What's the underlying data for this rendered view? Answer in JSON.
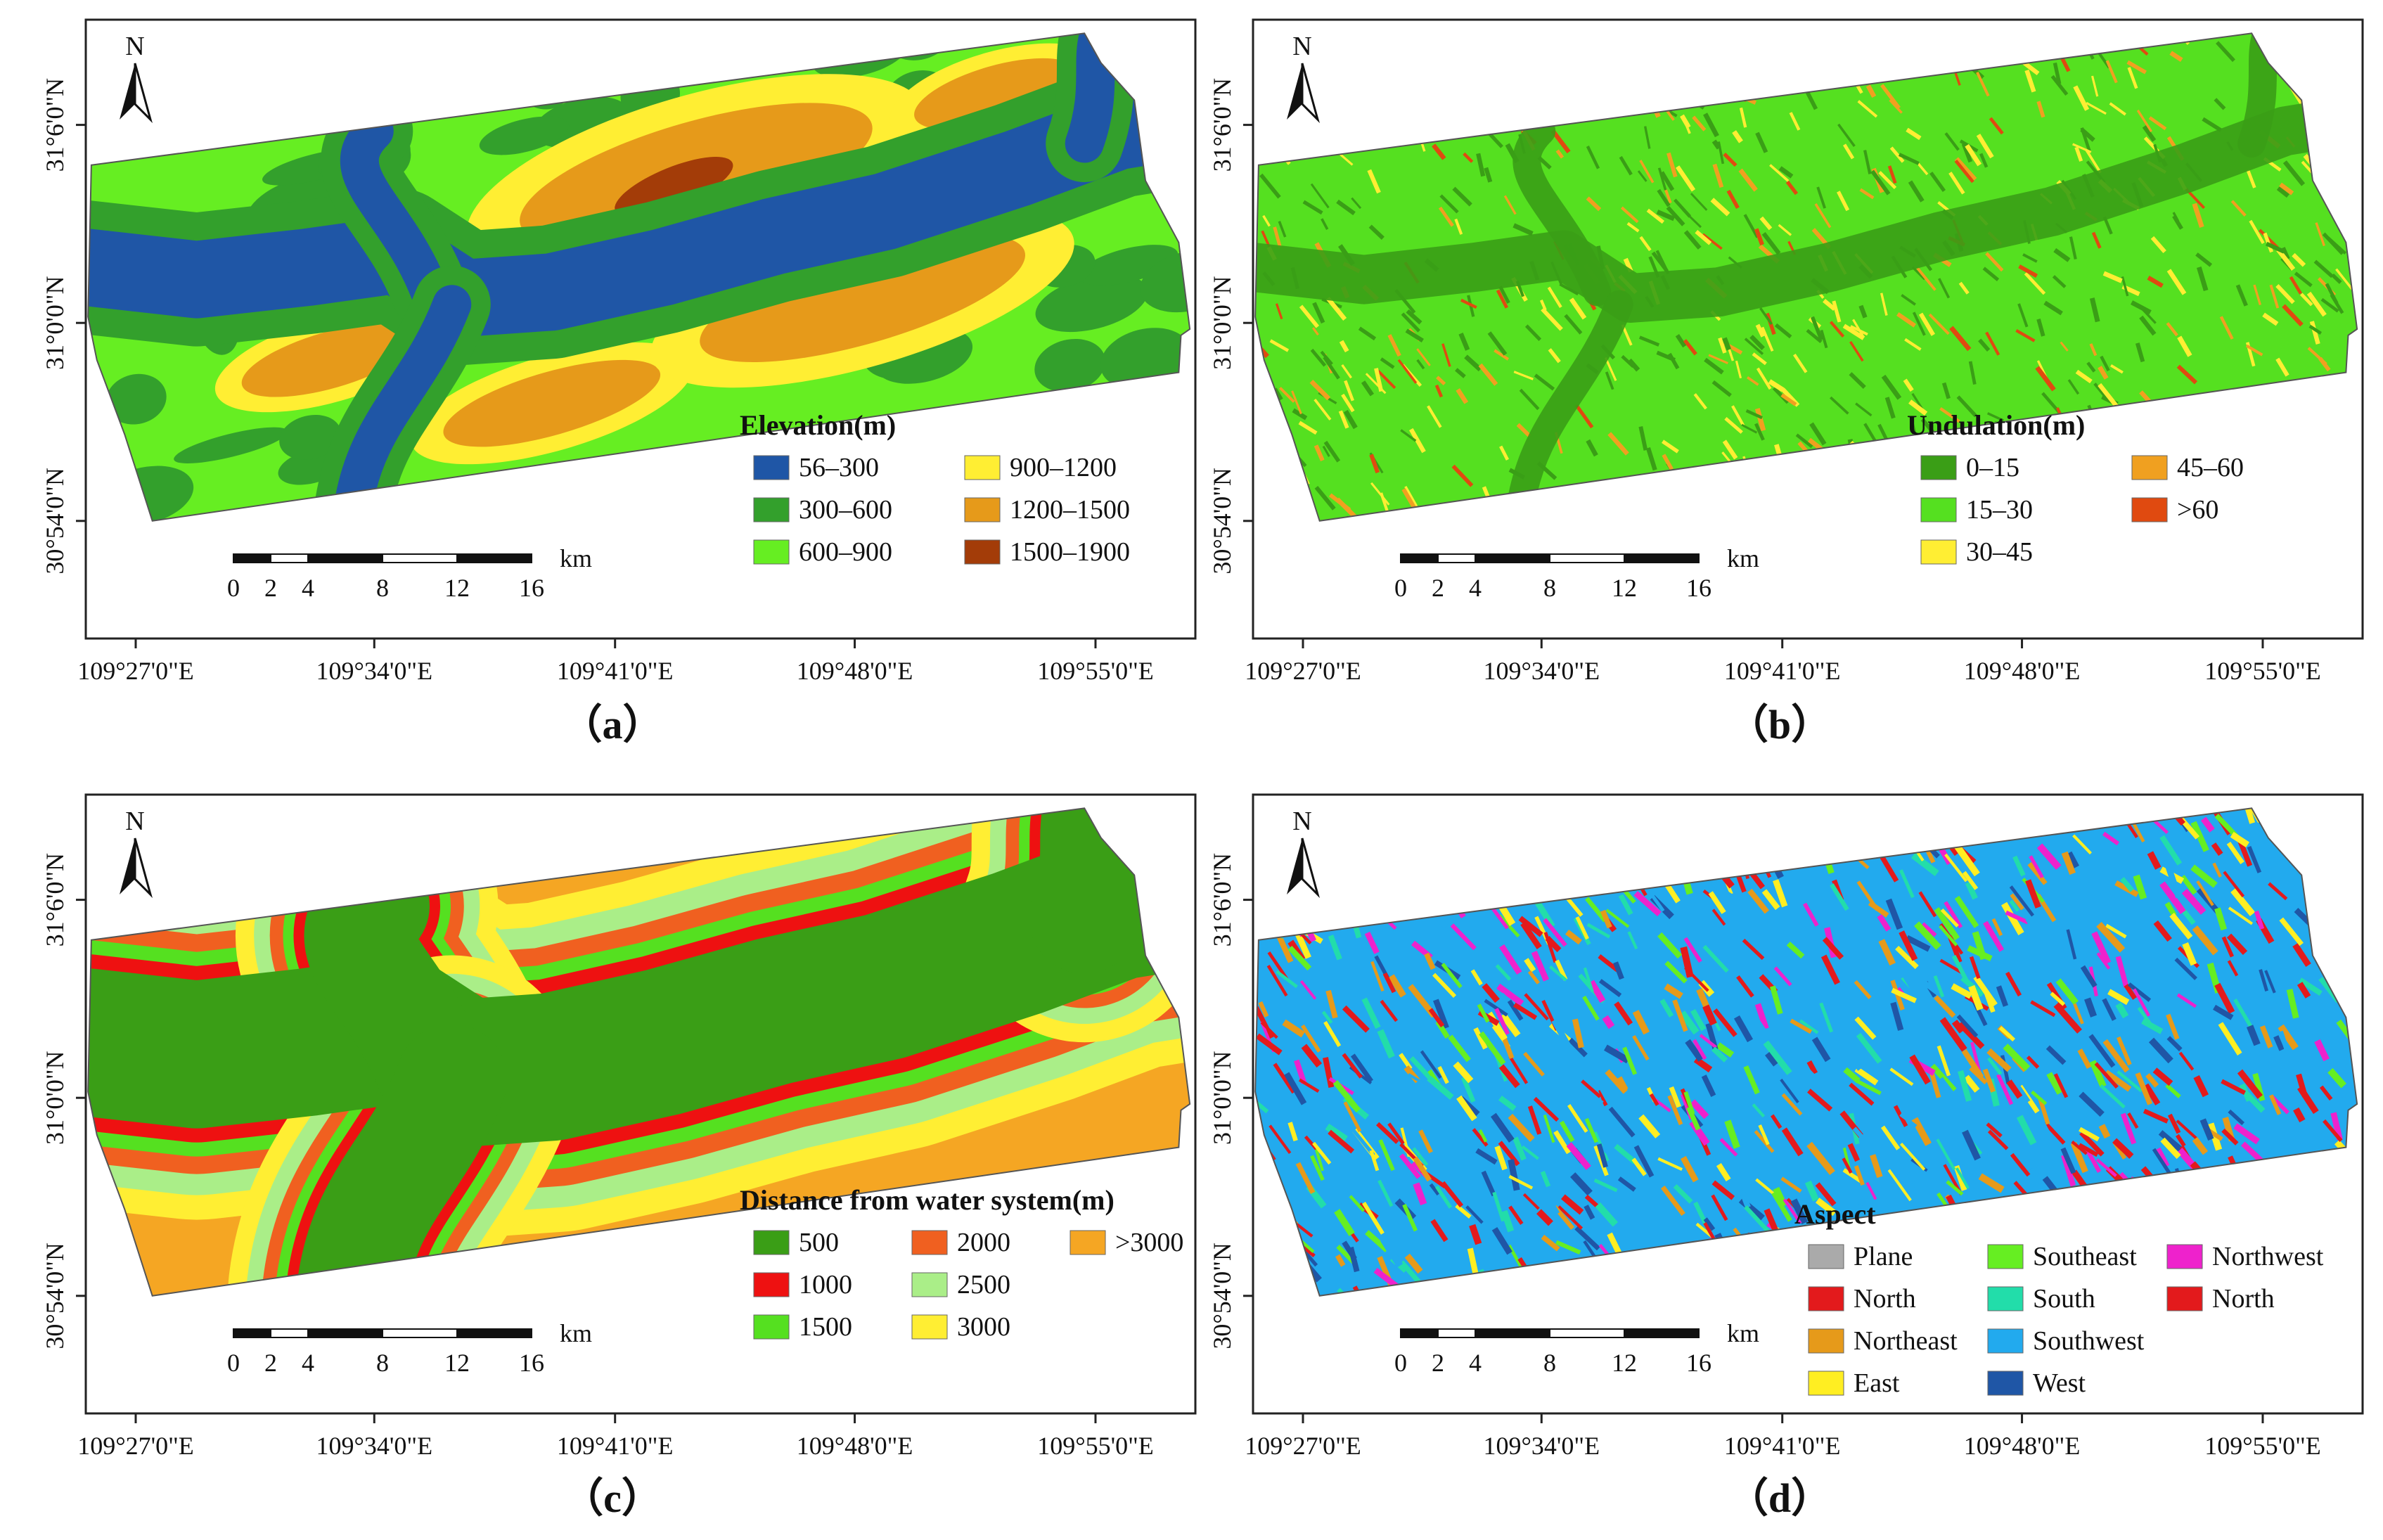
{
  "figure": {
    "panels": [
      {
        "id": "a",
        "caption": "（a）",
        "north_label": "N",
        "legend_title": "Elevation(m)",
        "legend_columns": 2,
        "legend": [
          {
            "label": "56–300",
            "color": "#1f56a6"
          },
          {
            "label": "300–600",
            "color": "#33a02c"
          },
          {
            "label": "600–900",
            "color": "#66ee22"
          },
          {
            "label": "900–1200",
            "color": "#ffee33"
          },
          {
            "label": "1200–1500",
            "color": "#e69a1a"
          },
          {
            "label": "1500–1900",
            "color": "#a33c08"
          }
        ],
        "scale_unit": "km",
        "scale_ticks": [
          "0",
          "2",
          "4",
          "8",
          "12",
          "16"
        ],
        "lat_labels": [
          "31°6'0\"N",
          "31°0'0\"N",
          "30°54'0\"N"
        ],
        "lon_labels": [
          "109°27'0\"E",
          "109°34'0\"E",
          "109°41'0\"E",
          "109°48'0\"E",
          "109°55'0\"E"
        ]
      },
      {
        "id": "b",
        "caption": "（b）",
        "north_label": "N",
        "legend_title": "Undulation(m)",
        "legend_columns": 2,
        "legend": [
          {
            "label": "0–15",
            "color": "#3a9e16"
          },
          {
            "label": "15–30",
            "color": "#55e020"
          },
          {
            "label": "30–45",
            "color": "#ffee33"
          },
          {
            "label": "45–60",
            "color": "#f0a020"
          },
          {
            "label": ">60",
            "color": "#e04a10"
          }
        ],
        "scale_unit": "km",
        "scale_ticks": [
          "0",
          "2",
          "4",
          "8",
          "12",
          "16"
        ],
        "lat_labels": [
          "31°6'0\"N",
          "31°0'0\"N",
          "30°54'0\"N"
        ],
        "lon_labels": [
          "109°27'0\"E",
          "109°34'0\"E",
          "109°41'0\"E",
          "109°48'0\"E",
          "109°55'0\"E"
        ]
      },
      {
        "id": "c",
        "caption": "（c）",
        "north_label": "N",
        "legend_title": "Distance from water system(m)",
        "legend_columns": 3,
        "legend": [
          {
            "label": "500",
            "color": "#3a9e16"
          },
          {
            "label": "1000",
            "color": "#ee1111"
          },
          {
            "label": "1500",
            "color": "#55e020"
          },
          {
            "label": "2000",
            "color": "#f06020"
          },
          {
            "label": "2500",
            "color": "#aaee88"
          },
          {
            "label": "3000",
            "color": "#ffee33"
          },
          {
            "label": ">3000",
            "color": "#f5a623"
          }
        ],
        "scale_unit": "km",
        "scale_ticks": [
          "0",
          "2",
          "4",
          "8",
          "12",
          "16"
        ],
        "lat_labels": [
          "31°6'0\"N",
          "31°0'0\"N",
          "30°54'0\"N"
        ],
        "lon_labels": [
          "109°27'0\"E",
          "109°34'0\"E",
          "109°41'0\"E",
          "109°48'0\"E",
          "109°55'0\"E"
        ]
      },
      {
        "id": "d",
        "caption": "（d）",
        "north_label": "N",
        "legend_title": "Aspect",
        "legend_columns": 3,
        "legend": [
          {
            "label": "Plane",
            "color": "#aaaaaa"
          },
          {
            "label": "North",
            "color": "#e31a1c"
          },
          {
            "label": "Northeast",
            "color": "#e69a1a"
          },
          {
            "label": "East",
            "color": "#ffee22"
          },
          {
            "label": "Southeast",
            "color": "#66ee22"
          },
          {
            "label": "South",
            "color": "#22ddaa"
          },
          {
            "label": "Southwest",
            "color": "#22aaee"
          },
          {
            "label": "West",
            "color": "#1f56a6"
          },
          {
            "label": "Northwest",
            "color": "#ee22cc"
          },
          {
            "label": "North",
            "color": "#e31a1c"
          }
        ],
        "scale_unit": "km",
        "scale_ticks": [
          "0",
          "2",
          "4",
          "8",
          "12",
          "16"
        ],
        "lat_labels": [
          "31°6'0\"N",
          "31°0'0\"N",
          "30°54'0\"N"
        ],
        "lon_labels": [
          "109°27'0\"E",
          "109°34'0\"E",
          "109°41'0\"E",
          "109°48'0\"E",
          "109°55'0\"E"
        ]
      }
    ]
  }
}
